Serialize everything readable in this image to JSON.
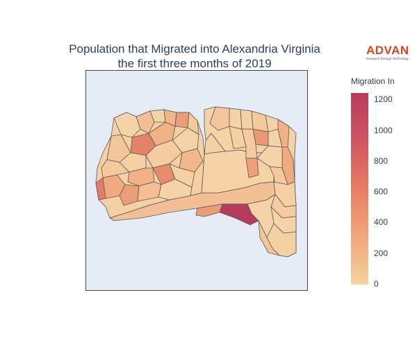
{
  "title": {
    "line1": "Population that Migrated into Alexandria Virginia",
    "line2": "the first three months of 2019"
  },
  "logo": {
    "word": "ADVAN",
    "tagline": "Research through Technology"
  },
  "colorbar": {
    "title": "Migration In",
    "ticks": [
      "0",
      "200",
      "400",
      "600",
      "800",
      "1000",
      "1200"
    ],
    "range": [
      0,
      1270
    ],
    "colors": [
      "#f4d4a0",
      "#f1b283",
      "#ee926d",
      "#e27263",
      "#cf5462",
      "#b63c5d"
    ]
  },
  "map": {
    "background": "#e5ecf6",
    "boundary_color": "#555555",
    "highlight": "Southeast block group with highest migration (~1270)"
  }
}
